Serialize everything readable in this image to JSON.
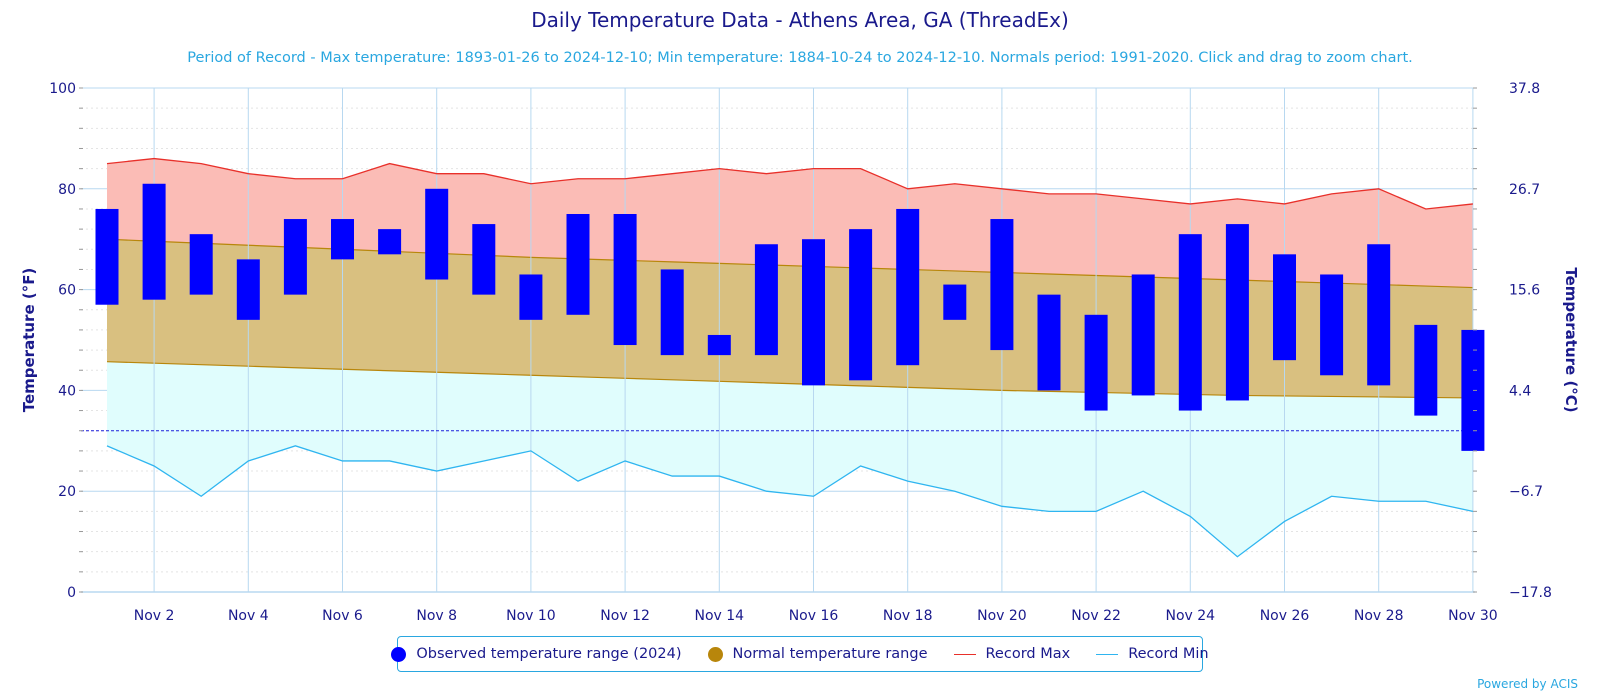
{
  "title": "Daily Temperature Data - Athens Area, GA (ThreadEx)",
  "subtitle": "Period of Record - Max temperature: 1893-01-26 to 2024-12-10; Min temperature: 1884-10-24 to 2024-12-10. Normals period: 1991-2020. Click and drag to zoom chart.",
  "credits": "Powered by ACIS",
  "colors": {
    "observed": "#0000ff",
    "normal_band": "#d9c080",
    "normal_legend": "#b8860b",
    "record_max_line": "#e8302a",
    "record_max_fill": "#fbbcb6",
    "record_min_line": "#2fb5f0",
    "record_min_fill": "#e0fdfd",
    "axis_text": "#1a1a8c",
    "grid": "#b8d8f0",
    "freeze_line": "#1e1edc"
  },
  "legend": [
    {
      "label": "Observed temperature range (2024)",
      "symbol": "dot",
      "color": "#0000ff"
    },
    {
      "label": "Normal temperature range",
      "symbol": "dot",
      "color": "#b8860b"
    },
    {
      "label": "Record Max",
      "symbol": "line",
      "color": "#e8302a"
    },
    {
      "label": "Record Min",
      "symbol": "line",
      "color": "#2fb5f0"
    }
  ],
  "chart_data": {
    "type": "bar",
    "ylabel": "Temperature (°F)",
    "y2label": "Temperature (°C)",
    "ylim": [
      0,
      100
    ],
    "yticks": [
      "0",
      "20",
      "40",
      "60",
      "80",
      "100"
    ],
    "y2ticks": [
      "−17.8",
      "−6.7",
      "4.4",
      "15.6",
      "26.7",
      "37.8"
    ],
    "xticks": [
      "Nov 2",
      "Nov 4",
      "Nov 6",
      "Nov 8",
      "Nov 10",
      "Nov 12",
      "Nov 14",
      "Nov 16",
      "Nov 18",
      "Nov 20",
      "Nov 22",
      "Nov 24",
      "Nov 26",
      "Nov 28",
      "Nov 30"
    ],
    "x_days": [
      1,
      2,
      3,
      4,
      5,
      6,
      7,
      8,
      9,
      10,
      11,
      12,
      13,
      14,
      15,
      16,
      17,
      18,
      19,
      20,
      21,
      22,
      23,
      24,
      25,
      26,
      27,
      28,
      29,
      30
    ],
    "freezing_line": 32,
    "grid": true,
    "legend_position": "bottom",
    "series": [
      {
        "name": "Observed temperature range (2024)",
        "low": [
          57,
          58,
          59,
          54,
          59,
          66,
          67,
          62,
          59,
          54,
          55,
          49,
          47,
          47,
          47,
          41,
          42,
          45,
          54,
          48,
          40,
          36,
          39,
          36,
          38,
          46,
          43,
          41,
          35,
          28
        ],
        "high": [
          76,
          81,
          71,
          66,
          74,
          74,
          72,
          80,
          73,
          63,
          75,
          75,
          64,
          51,
          69,
          70,
          72,
          76,
          61,
          74,
          59,
          55,
          63,
          71,
          73,
          67,
          63,
          69,
          53,
          52
        ]
      },
      {
        "name": "Normal temperature range",
        "low": [
          45.7,
          45.4,
          45.1,
          44.8,
          44.5,
          44.2,
          43.9,
          43.6,
          43.3,
          43.0,
          42.7,
          42.4,
          42.1,
          41.8,
          41.5,
          41.2,
          40.9,
          40.6,
          40.3,
          40.0,
          39.8,
          39.6,
          39.4,
          39.2,
          39.0,
          38.9,
          38.8,
          38.7,
          38.6,
          38.5
        ],
        "high": [
          70.0,
          69.6,
          69.2,
          68.8,
          68.4,
          68.0,
          67.6,
          67.2,
          66.8,
          66.4,
          66.1,
          65.8,
          65.5,
          65.2,
          64.9,
          64.6,
          64.3,
          64.0,
          63.7,
          63.4,
          63.1,
          62.8,
          62.5,
          62.2,
          61.9,
          61.6,
          61.3,
          61.0,
          60.7,
          60.4
        ]
      },
      {
        "name": "Record Max",
        "values": [
          85,
          86,
          85,
          83,
          82,
          82,
          85,
          83,
          83,
          81,
          82,
          82,
          83,
          84,
          83,
          84,
          84,
          80,
          81,
          80,
          79,
          79,
          78,
          77,
          78,
          77,
          79,
          80,
          76,
          77
        ]
      },
      {
        "name": "Record Min",
        "values": [
          29,
          25,
          19,
          26,
          29,
          26,
          26,
          24,
          26,
          28,
          22,
          26,
          23,
          23,
          20,
          19,
          25,
          22,
          20,
          17,
          16,
          16,
          20,
          15,
          7,
          14,
          19,
          18,
          18,
          16
        ]
      }
    ]
  }
}
